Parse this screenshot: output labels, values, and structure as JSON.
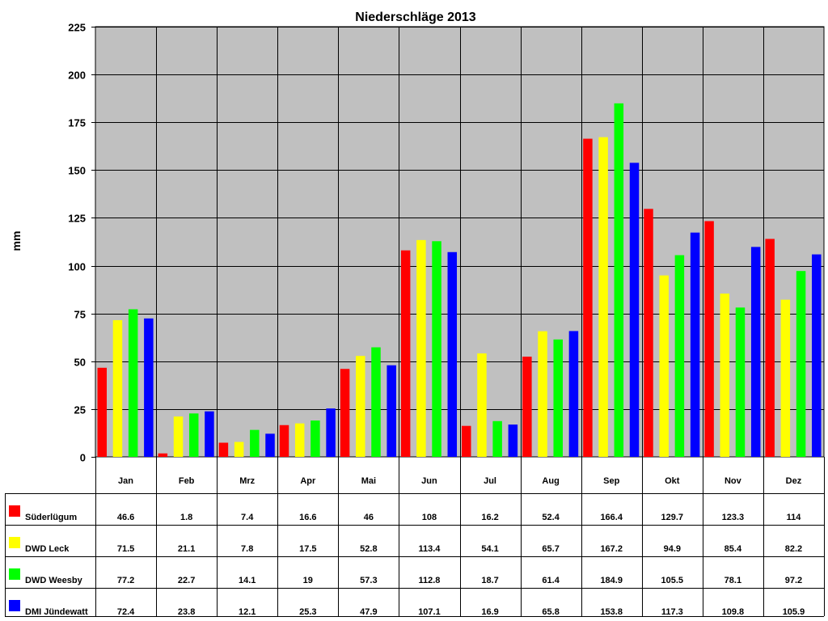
{
  "chart_data": {
    "type": "bar",
    "title": "Niederschläge 2013",
    "xlabel": "",
    "ylabel": "mm",
    "ylim": [
      0,
      225
    ],
    "yticks": [
      0,
      25,
      50,
      75,
      100,
      125,
      150,
      175,
      200,
      225
    ],
    "grid": true,
    "legend": "data-table",
    "plot_background": "#C0C0C0",
    "categories": [
      "Jan",
      "Feb",
      "Mrz",
      "Apr",
      "Mai",
      "Jun",
      "Jul",
      "Aug",
      "Sep",
      "Okt",
      "Nov",
      "Dez"
    ],
    "series": [
      {
        "name": "Süderlügum",
        "color": "#FF0000",
        "values": [
          46.6,
          1.8,
          7.4,
          16.6,
          46,
          108,
          16.2,
          52.4,
          166.4,
          129.7,
          123.3,
          114
        ]
      },
      {
        "name": "DWD Leck",
        "color": "#FFFF00",
        "values": [
          71.5,
          21.1,
          7.8,
          17.5,
          52.8,
          113.4,
          54.1,
          65.7,
          167.2,
          94.9,
          85.4,
          82.2
        ]
      },
      {
        "name": "DWD Weesby",
        "color": "#00FF00",
        "values": [
          77.2,
          22.7,
          14.1,
          19,
          57.3,
          112.8,
          18.7,
          61.4,
          184.9,
          105.5,
          78.1,
          97.2
        ]
      },
      {
        "name": "DMI Jündewatt",
        "color": "#0000FF",
        "values": [
          72.4,
          23.8,
          12.1,
          25.3,
          47.9,
          107.1,
          16.9,
          65.8,
          153.8,
          117.3,
          109.8,
          105.9
        ]
      }
    ]
  }
}
